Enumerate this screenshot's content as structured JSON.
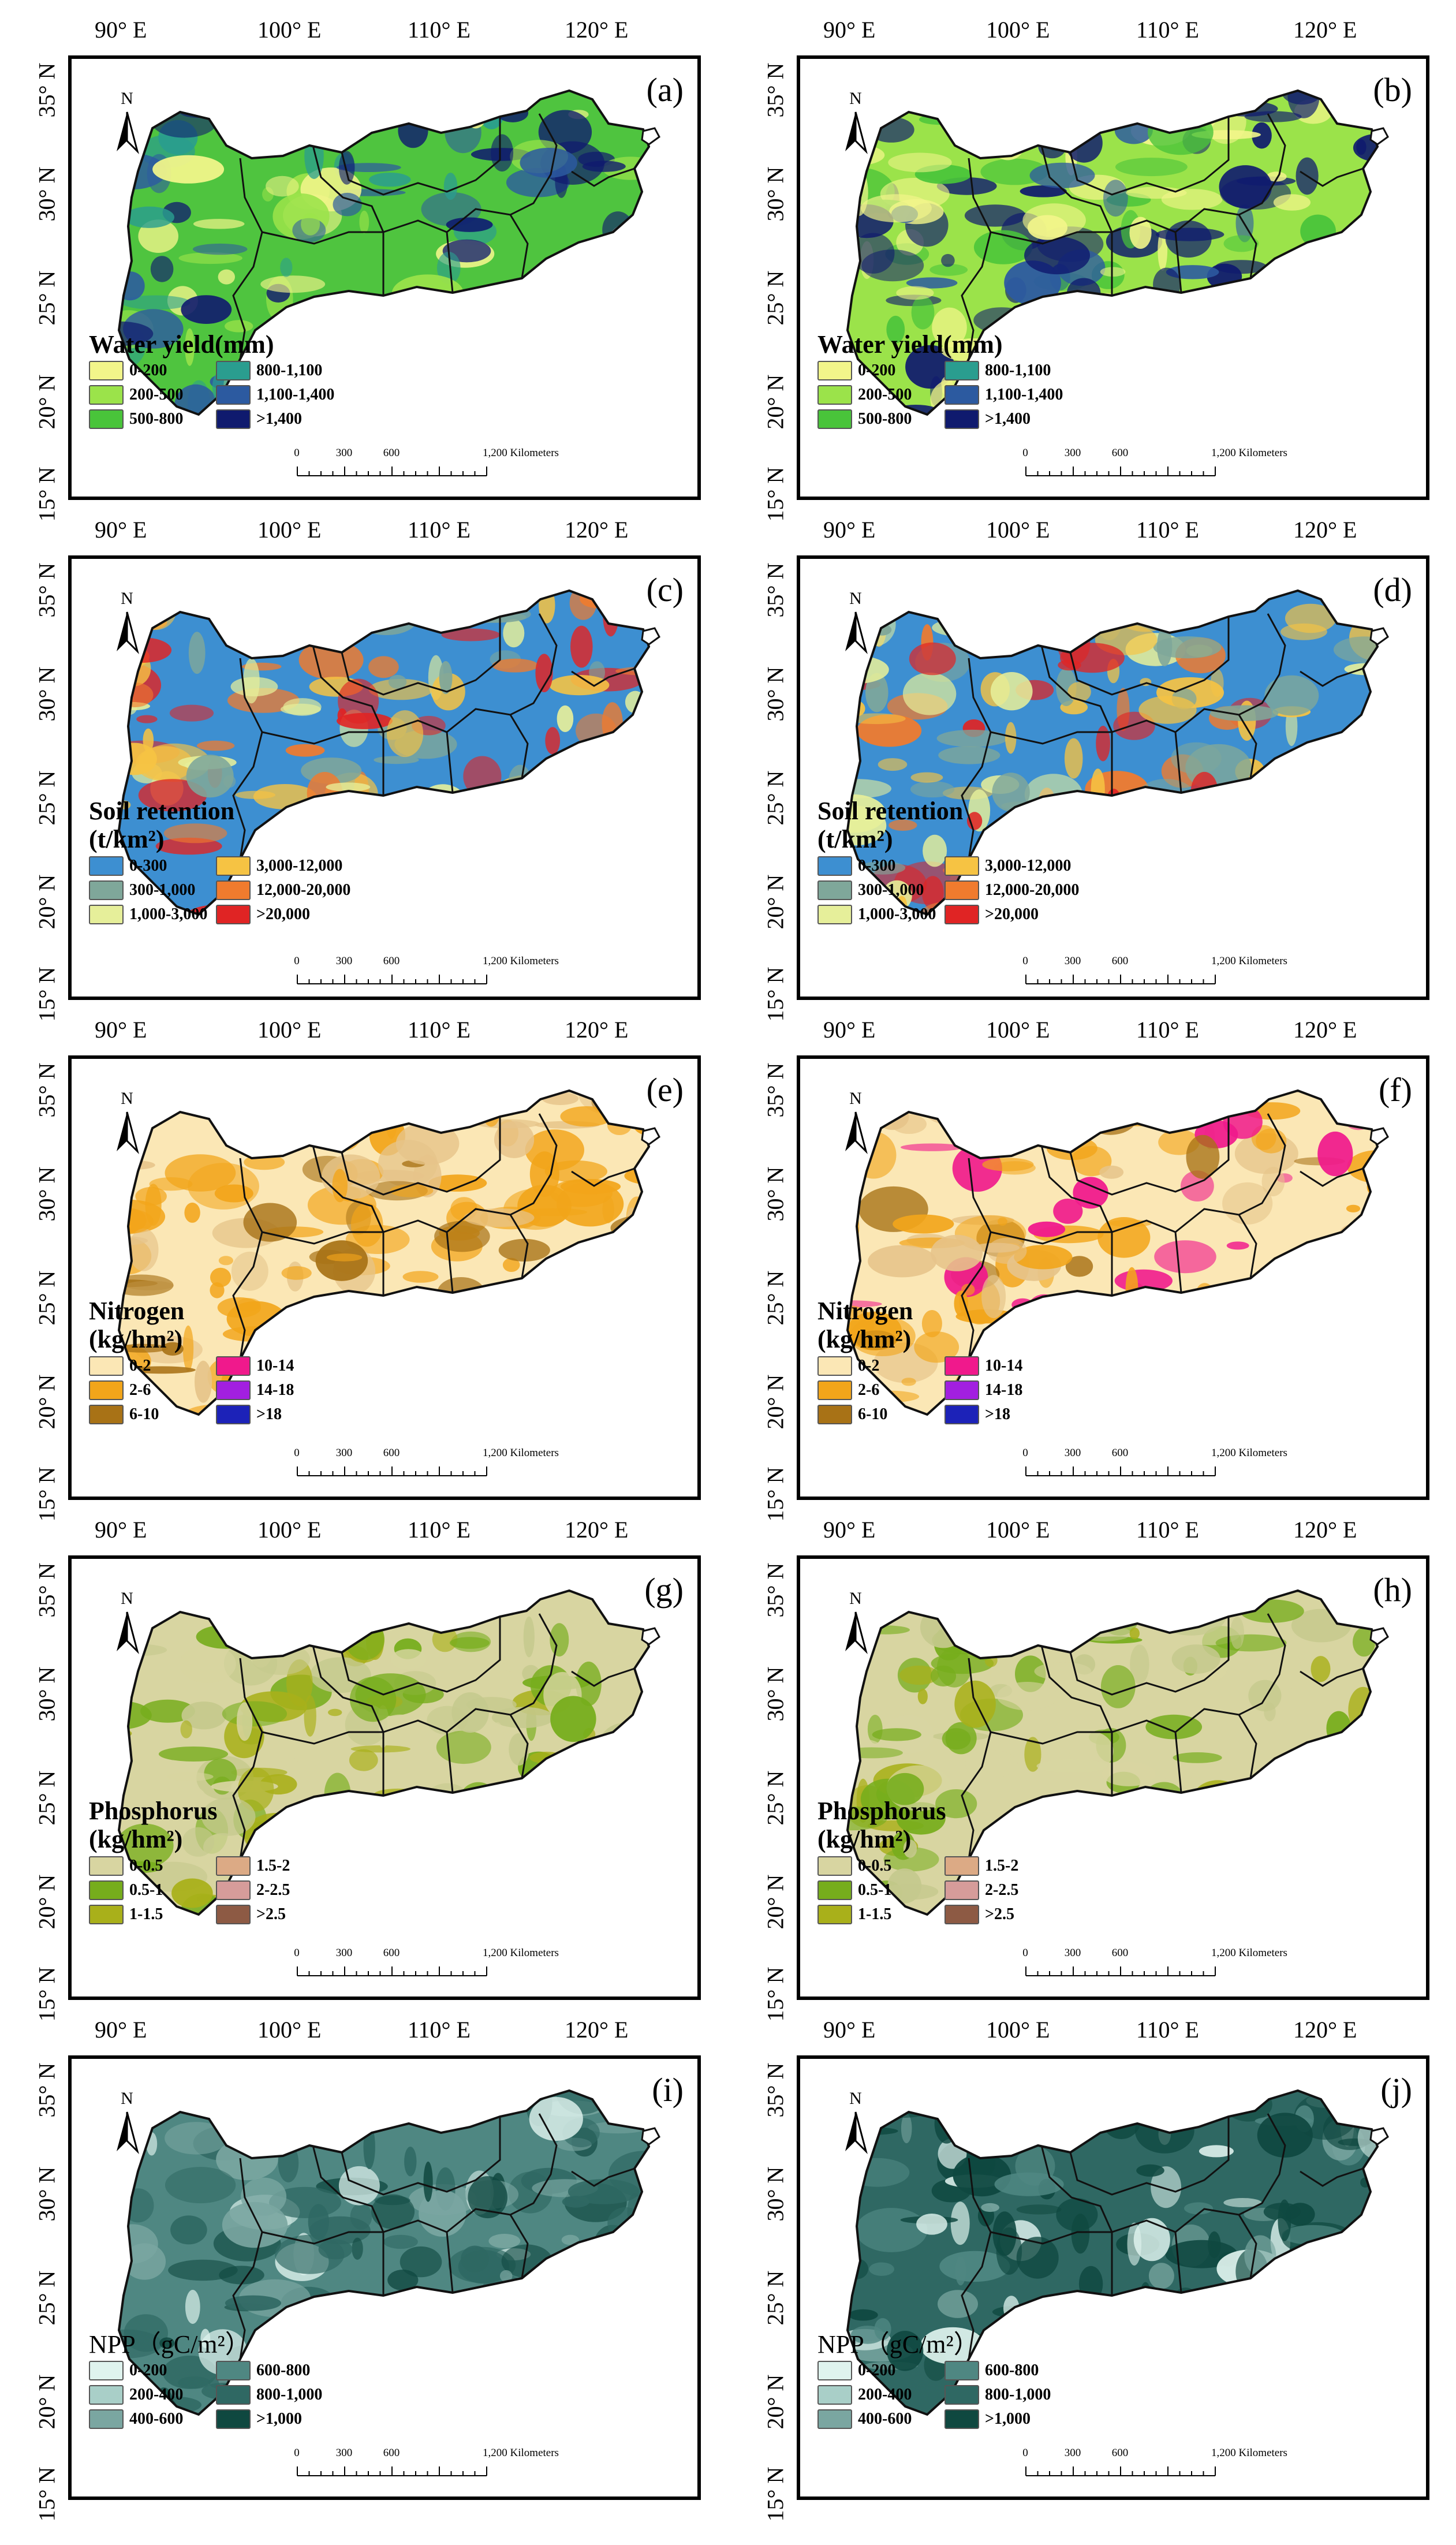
{
  "longitude_ticks": [
    "90° E",
    "100° E",
    "110° E",
    "120° E"
  ],
  "latitude_ticks": [
    "35° N",
    "30° N",
    "25° N",
    "20° N",
    "15° N"
  ],
  "north_label": "N",
  "scale_bar": {
    "labels": [
      "0",
      "300",
      "600",
      "1,200 Kilometers"
    ]
  },
  "panels": [
    {
      "id": "a",
      "label": "(a)",
      "legend": "water"
    },
    {
      "id": "b",
      "label": "(b)",
      "legend": "water"
    },
    {
      "id": "c",
      "label": "(c)",
      "legend": "soil"
    },
    {
      "id": "d",
      "label": "(d)",
      "legend": "soil"
    },
    {
      "id": "e",
      "label": "(e)",
      "legend": "nitrogen"
    },
    {
      "id": "f",
      "label": "(f)",
      "legend": "nitrogen"
    },
    {
      "id": "g",
      "label": "(g)",
      "legend": "phosphorus"
    },
    {
      "id": "h",
      "label": "(h)",
      "legend": "phosphorus"
    },
    {
      "id": "i",
      "label": "(i)",
      "legend": "npp"
    },
    {
      "id": "j",
      "label": "(j)",
      "legend": "npp"
    }
  ],
  "legends": {
    "water": {
      "title": [
        "Water yield(mm)"
      ],
      "items": [
        {
          "label": "0-200",
          "color": "#f2f58a"
        },
        {
          "label": "800-1,100",
          "color": "#2a9d8f"
        },
        {
          "label": "200-500",
          "color": "#9be34a"
        },
        {
          "label": "1,100-1,400",
          "color": "#2c5aa0"
        },
        {
          "label": "500-800",
          "color": "#49c43a"
        },
        {
          "label": ">1,400",
          "color": "#0f1a6e"
        }
      ]
    },
    "soil": {
      "title": [
        "Soil retention",
        "(t/km²)"
      ],
      "items": [
        {
          "label": "0-300",
          "color": "#3d8fd1"
        },
        {
          "label": "3,000-12,000",
          "color": "#f6c343"
        },
        {
          "label": "300-1,000",
          "color": "#7fa79a"
        },
        {
          "label": "12,000-20,000",
          "color": "#f07b2e"
        },
        {
          "label": "1,000-3,000",
          "color": "#e6ef9a"
        },
        {
          "label": ">20,000",
          "color": "#e02424"
        }
      ]
    },
    "nitrogen": {
      "title": [
        "Nitrogen",
        "(kg/hm²)"
      ],
      "items": [
        {
          "label": "0-2",
          "color": "#fbe7b5"
        },
        {
          "label": "10-14",
          "color": "#f0198c"
        },
        {
          "label": "2-6",
          "color": "#f2a51a"
        },
        {
          "label": "14-18",
          "color": "#a21fe0"
        },
        {
          "label": "6-10",
          "color": "#a87216"
        },
        {
          "label": ">18",
          "color": "#1c22b8"
        }
      ]
    },
    "phosphorus": {
      "title": [
        "Phosphorus",
        "(kg/hm²)"
      ],
      "items": [
        {
          "label": "0-0.5",
          "color": "#d8d5a1"
        },
        {
          "label": "1.5-2",
          "color": "#dcaa85"
        },
        {
          "label": "0.5-1",
          "color": "#76ad1c"
        },
        {
          "label": "2-2.5",
          "color": "#d69c9a"
        },
        {
          "label": "1-1.5",
          "color": "#a9b01a"
        },
        {
          "label": ">2.5",
          "color": "#8d5a44"
        }
      ]
    },
    "npp": {
      "title": [
        "NPP（gC/m²）"
      ],
      "items": [
        {
          "label": "0-200",
          "color": "#dff3ee"
        },
        {
          "label": "600-800",
          "color": "#4f8782"
        },
        {
          "label": "200-400",
          "color": "#a9cfc8"
        },
        {
          "label": "800-1,000",
          "color": "#2f6863"
        },
        {
          "label": "400-600",
          "color": "#7aa6a1"
        },
        {
          "label": ">1,000",
          "color": "#0f4840"
        }
      ]
    }
  },
  "map_styles": {
    "a": {
      "base": "#4fc43f",
      "patches": [
        "#f2f58a",
        "#9be34a",
        "#2a9d8f",
        "#2c5aa0",
        "#0f1a6e"
      ]
    },
    "b": {
      "base": "#9be34a",
      "patches": [
        "#f2f58a",
        "#49c43a",
        "#2c5aa0",
        "#0f1a6e",
        "#0f1a6e"
      ]
    },
    "c": {
      "base": "#3d8fd1",
      "patches": [
        "#7fa79a",
        "#e6ef9a",
        "#f6c343",
        "#f07b2e",
        "#e02424"
      ]
    },
    "d": {
      "base": "#3d8fd1",
      "patches": [
        "#f6c343",
        "#f07b2e",
        "#e02424",
        "#e6ef9a",
        "#7fa79a"
      ]
    },
    "e": {
      "base": "#fbe7b5",
      "patches": [
        "#f2a51a",
        "#f2a51a",
        "#a87216",
        "#e6c48a",
        "#f2a51a"
      ]
    },
    "f": {
      "base": "#fbe7b5",
      "patches": [
        "#f2a51a",
        "#f2a51a",
        "#a87216",
        "#f0198c",
        "#e6c48a"
      ]
    },
    "g": {
      "base": "#d8d5a1",
      "patches": [
        "#76ad1c",
        "#a9b01a",
        "#c5c98d",
        "#76ad1c",
        "#d8d5a1"
      ]
    },
    "h": {
      "base": "#d8d5a1",
      "patches": [
        "#76ad1c",
        "#a9b01a",
        "#c5c98d",
        "#d8d5a1",
        "#76ad1c"
      ]
    },
    "i": {
      "base": "#4f8782",
      "patches": [
        "#2f6863",
        "#0f4840",
        "#7aa6a1",
        "#dff3ee",
        "#2f6863"
      ]
    },
    "j": {
      "base": "#2f6863",
      "patches": [
        "#0f4840",
        "#4f8782",
        "#7aa6a1",
        "#dff3ee",
        "#0f4840"
      ]
    }
  }
}
